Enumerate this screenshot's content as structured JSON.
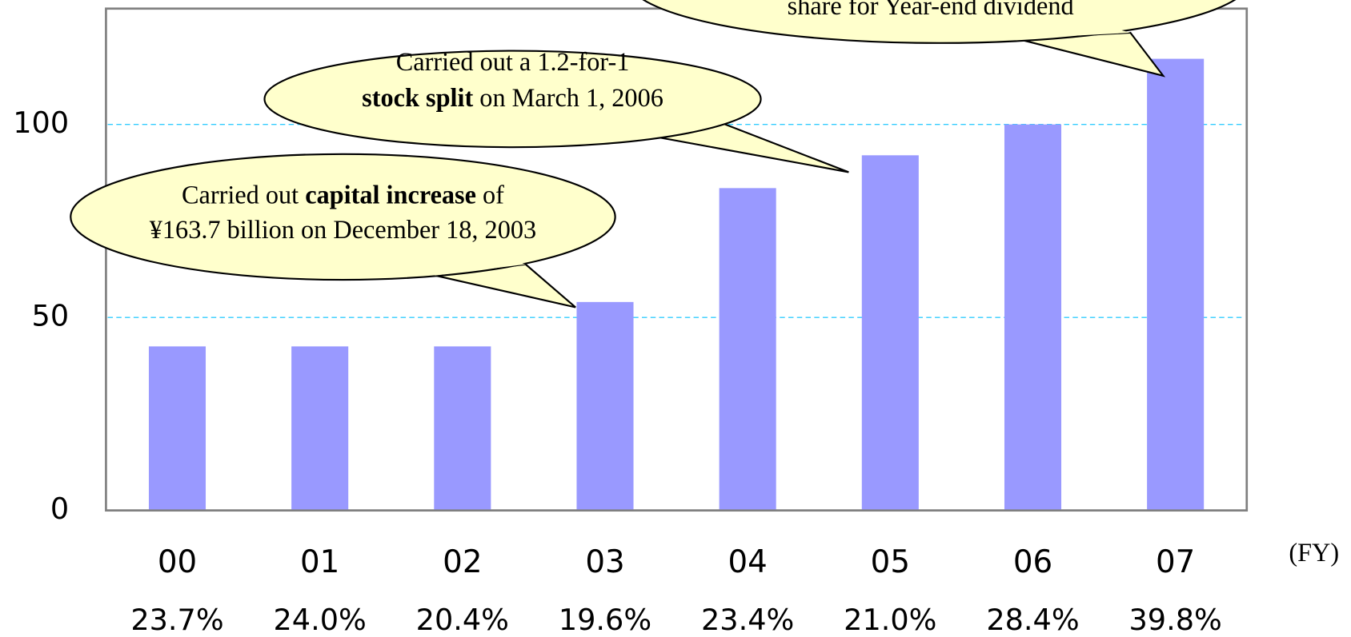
{
  "chart_data": {
    "type": "bar",
    "categories": [
      "00",
      "01",
      "02",
      "03",
      "04",
      "05",
      "06",
      "07"
    ],
    "values": [
      42.5,
      42.5,
      42.5,
      54,
      83.5,
      92,
      100,
      117
    ],
    "color": "#9999ff",
    "ylim": [
      0,
      130
    ],
    "yticks": [
      0,
      50,
      100
    ],
    "grid": true,
    "x_axis_label": "(FY)",
    "payout_ratio_labels": [
      "23.7%",
      "24.0%",
      "20.4%",
      "19.6%",
      "23.4%",
      "21.0%",
      "28.4%",
      "39.8%"
    ],
    "annotations": [
      {
        "lines": [
          [
            {
              "text": "Carried out "
            },
            {
              "text": "capital increase",
              "bold": true
            },
            {
              "text": " of"
            }
          ],
          [
            {
              "text": "¥163.7 billion on December 18, 2003"
            }
          ]
        ]
      },
      {
        "lines": [
          [
            {
              "text": "Carried out a 1.2-for-1"
            }
          ],
          [
            {
              "text": "stock split",
              "bold": true
            },
            {
              "text": " on March 1, 2006"
            }
          ]
        ]
      },
      {
        "lines": [
          [
            {
              "text": "share for Year-end dividend"
            }
          ]
        ]
      }
    ]
  }
}
